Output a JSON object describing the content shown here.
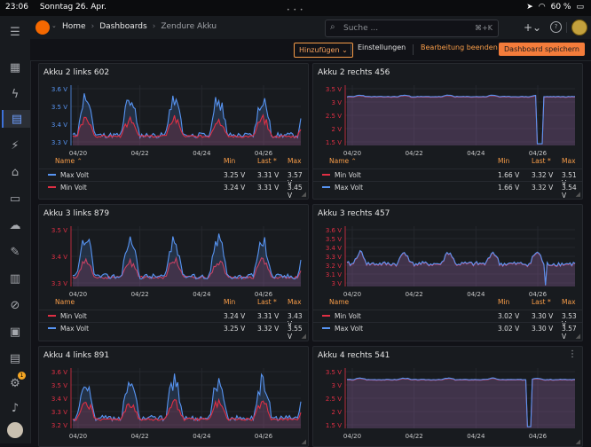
{
  "statusbar": {
    "time": "23:06",
    "date": "Sonntag 26. Apr.",
    "battery": "60 %"
  },
  "search": {
    "placeholder": "Suche ...",
    "shortcut": "⌘+K"
  },
  "breadcrumb": {
    "home": "Home",
    "dashboards": "Dashboards",
    "current": "Zendure Akku"
  },
  "toolbar": {
    "add": "Hinzufügen",
    "settings": "Einstellungen",
    "exit_edit": "Bearbeitung beenden",
    "save": "Dashboard speichern"
  },
  "sidebar": {
    "badge": "1"
  },
  "colors": {
    "min": "#e02f44",
    "max": "#5794f2",
    "accent": "#f79c48"
  },
  "legend_headers": {
    "name": "Name",
    "min": "Min",
    "last": "Last *",
    "max": "Max"
  },
  "panels": [
    {
      "title": "Akku 2 links 602",
      "yticks": [
        "3.6 V",
        "3.5 V",
        "3.4 V",
        "3.3 V"
      ],
      "tick_color": "#5794f2",
      "xticks": [
        "04/20",
        "04/22",
        "04/24",
        "04/26"
      ],
      "rows": [
        {
          "name": "Max Volt",
          "min": "3.25 V",
          "last": "3.31 V",
          "max": "3.57 V",
          "color": "#5794f2"
        },
        {
          "name": "Min Volt",
          "min": "3.24 V",
          "last": "3.31 V",
          "max": "3.45 V",
          "color": "#e02f44"
        }
      ]
    },
    {
      "title": "Akku 2 rechts 456",
      "yticks": [
        "3.5 V",
        "3 V",
        "2.5 V",
        "2 V",
        "1.5 V"
      ],
      "tick_color": "#e02f44",
      "xticks": [
        "04/20",
        "04/22",
        "04/24",
        "04/26"
      ],
      "rows": [
        {
          "name": "Min Volt",
          "min": "1.66 V",
          "last": "3.32 V",
          "max": "3.51 V",
          "color": "#e02f44"
        },
        {
          "name": "Max Volt",
          "min": "1.66 V",
          "last": "3.32 V",
          "max": "3.54 V",
          "color": "#5794f2"
        }
      ]
    },
    {
      "title": "Akku 3 links 879",
      "yticks": [
        "3.5 V",
        "3.4 V",
        "3.3 V"
      ],
      "tick_color": "#e02f44",
      "xticks": [
        "04/20",
        "04/22",
        "04/24",
        "04/26"
      ],
      "rows": [
        {
          "name": "Min Volt",
          "min": "3.24 V",
          "last": "3.31 V",
          "max": "3.43 V",
          "color": "#e02f44"
        },
        {
          "name": "Max Volt",
          "min": "3.25 V",
          "last": "3.32 V",
          "max": "3.55 V",
          "color": "#5794f2"
        }
      ]
    },
    {
      "title": "Akku 3 rechts 457",
      "yticks": [
        "3.6 V",
        "3.5 V",
        "3.4 V",
        "3.3 V",
        "3.2 V",
        "3.1 V",
        "3 V"
      ],
      "tick_color": "#e02f44",
      "xticks": [
        "04/20",
        "04/22",
        "04/24",
        "04/26"
      ],
      "rows": [
        {
          "name": "Min Volt",
          "min": "3.02 V",
          "last": "3.30 V",
          "max": "3.53 V",
          "color": "#e02f44"
        },
        {
          "name": "Max Volt",
          "min": "3.02 V",
          "last": "3.30 V",
          "max": "3.57 V",
          "color": "#5794f2"
        }
      ]
    },
    {
      "title": "Akku 4 links 891",
      "yticks": [
        "3.6 V",
        "3.5 V",
        "3.4 V",
        "3.3 V",
        "3.2 V"
      ],
      "tick_color": "#e02f44",
      "xticks": [
        "04/20",
        "04/22",
        "04/24",
        "04/26"
      ],
      "rows": []
    },
    {
      "title": "Akku 4 rechts 541",
      "yticks": [
        "3.5 V",
        "3 V",
        "2.5 V",
        "2 V",
        "1.5 V"
      ],
      "tick_color": "#e02f44",
      "xticks": [
        "04/20",
        "04/22",
        "04/24",
        "04/26"
      ],
      "rows": []
    }
  ]
}
